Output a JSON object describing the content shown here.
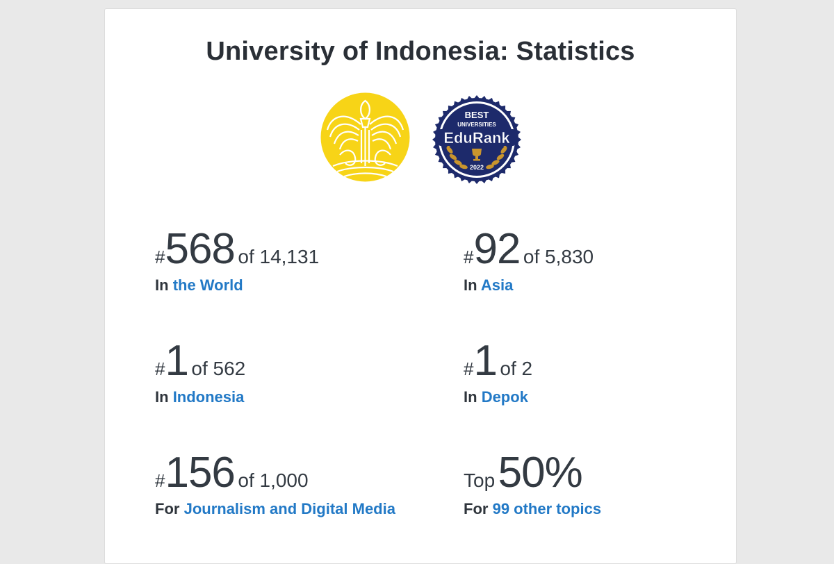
{
  "page": {
    "title": "University of Indonesia: Statistics"
  },
  "badge": {
    "top_text": "BEST",
    "mid_text": "UNIVERSITIES",
    "brand": "EduRank",
    "year": "2022"
  },
  "stats": [
    {
      "prefix": "#",
      "rank": "568",
      "of_text": "of 14,131",
      "scope_prefix": "In",
      "scope_link": "the World"
    },
    {
      "prefix": "#",
      "rank": "92",
      "of_text": "of 5,830",
      "scope_prefix": "In",
      "scope_link": "Asia"
    },
    {
      "prefix": "#",
      "rank": "1",
      "of_text": "of 562",
      "scope_prefix": "In",
      "scope_link": "Indonesia"
    },
    {
      "prefix": "#",
      "rank": "1",
      "of_text": "of 2",
      "scope_prefix": "In",
      "scope_link": "Depok"
    },
    {
      "prefix": "#",
      "rank": "156",
      "of_text": "of 1,000",
      "scope_prefix": "For",
      "scope_link": "Journalism and Digital Media"
    },
    {
      "prefix": "Top",
      "rank": "50%",
      "of_text": "",
      "scope_prefix": "For",
      "scope_link": "99 other topics"
    }
  ],
  "colors": {
    "link": "#2279c6",
    "text": "#333a42",
    "logo_yellow": "#f7d417",
    "badge_navy": "#1d2a6b",
    "badge_gold": "#c9952d"
  },
  "icons": {
    "university_logo": "makara-logo-icon",
    "edurank_badge": "edurank-badge-icon",
    "trophy": "trophy-icon"
  }
}
